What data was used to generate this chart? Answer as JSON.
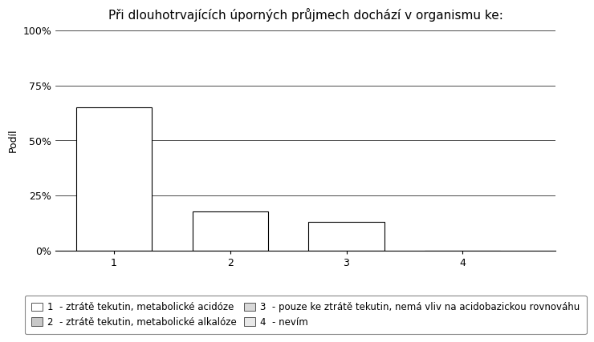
{
  "title": "Při dlouhotrvajících úporných průjmech dochází v organismu ke:",
  "categories": [
    "1",
    "2",
    "3",
    "4"
  ],
  "values": [
    65,
    18,
    13,
    0
  ],
  "bar_color": "#ffffff",
  "bar_edgecolor": "#000000",
  "ylabel": "Podíl",
  "ylim": [
    0,
    100
  ],
  "yticks": [
    0,
    25,
    50,
    75,
    100
  ],
  "ytick_labels": [
    "0%",
    "25%",
    "50%",
    "75%",
    "100%"
  ],
  "background_color": "#ffffff",
  "outer_background": "#f0f0f0",
  "grid_color": "#000000",
  "legend_items": [
    {
      "label": "1  - ztrátě tekutin, metabolické acidóze",
      "color": "#ffffff"
    },
    {
      "label": "2  - ztrátě tekutin, metabolické alkalóze",
      "color": "#c8c8c8"
    },
    {
      "label": "3  - pouze ke ztrátě tekutin, nemá vliv na acidobazickou rovnováhu",
      "color": "#d8d8d8"
    },
    {
      "label": "4  - nevím",
      "color": "#e8e8e8"
    }
  ],
  "title_fontsize": 11,
  "axis_fontsize": 9,
  "tick_fontsize": 9,
  "legend_fontsize": 8.5
}
